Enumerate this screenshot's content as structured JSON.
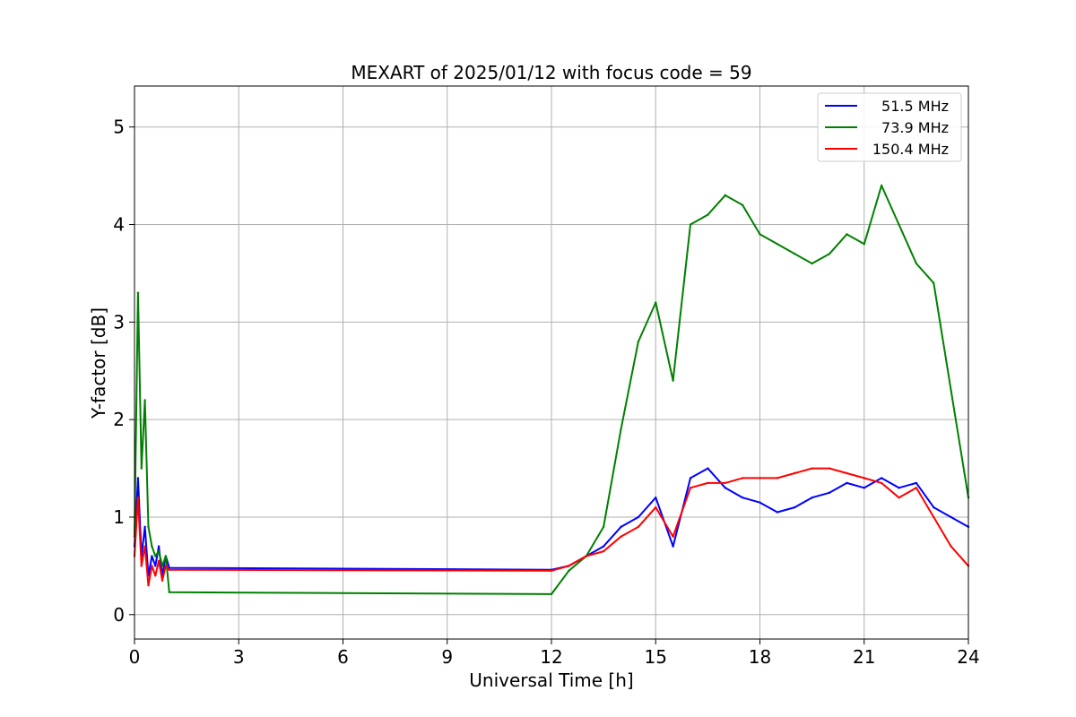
{
  "chart_data": {
    "type": "line",
    "title": "MEXART of 2025/01/12 with focus code = 59",
    "xlabel": "Universal Time [h]",
    "ylabel": "Y-factor [dB]",
    "xlim": [
      0,
      24
    ],
    "ylim": [
      -0.25,
      5.42
    ],
    "xticks": [
      0,
      3,
      6,
      9,
      12,
      15,
      18,
      21,
      24
    ],
    "xtick_labels": [
      "0",
      "3",
      "6",
      "9",
      "12",
      "15",
      "18",
      "21",
      "24"
    ],
    "yticks": [
      0,
      1,
      2,
      3,
      4,
      5
    ],
    "ytick_labels": [
      "0",
      "1",
      "2",
      "3",
      "4",
      "5"
    ],
    "grid": true,
    "legend_position": "top-right",
    "series": [
      {
        "name": " 51.5 MHz",
        "color": "#0000ff",
        "x": [
          0,
          0.1,
          0.2,
          0.3,
          0.4,
          0.5,
          0.6,
          0.7,
          0.8,
          0.9,
          1.0,
          12.0,
          12.5,
          13.0,
          13.5,
          14.0,
          14.5,
          15.0,
          15.5,
          16.0,
          16.5,
          17.0,
          17.5,
          18.0,
          18.5,
          19.0,
          19.5,
          20.0,
          20.5,
          21.0,
          21.5,
          22.0,
          22.5,
          23.0,
          23.5,
          24.0
        ],
        "values": [
          0.7,
          1.4,
          0.6,
          0.9,
          0.4,
          0.6,
          0.5,
          0.7,
          0.4,
          0.6,
          0.48,
          0.46,
          0.5,
          0.6,
          0.7,
          0.9,
          1.0,
          1.2,
          0.7,
          1.4,
          1.5,
          1.3,
          1.2,
          1.15,
          1.05,
          1.1,
          1.2,
          1.25,
          1.35,
          1.3,
          1.4,
          1.3,
          1.35,
          1.1,
          1.0,
          0.9
        ]
      },
      {
        "name": "73.9 MHz",
        "color": "#008000",
        "x": [
          0,
          0.1,
          0.2,
          0.3,
          0.4,
          0.5,
          0.6,
          0.7,
          0.8,
          0.9,
          1.0,
          12.0,
          12.5,
          13.0,
          13.5,
          14.0,
          14.5,
          15.0,
          15.5,
          16.0,
          16.5,
          17.0,
          17.5,
          18.0,
          18.5,
          19.0,
          19.5,
          20.0,
          20.5,
          21.0,
          21.5,
          22.0,
          22.5,
          23.0,
          23.5,
          24.0
        ],
        "values": [
          0.8,
          3.3,
          1.5,
          2.2,
          0.9,
          0.7,
          0.6,
          0.65,
          0.5,
          0.6,
          0.23,
          0.21,
          0.45,
          0.6,
          0.9,
          1.9,
          2.8,
          3.2,
          2.4,
          4.0,
          4.1,
          4.3,
          4.2,
          3.9,
          3.8,
          3.7,
          3.6,
          3.7,
          3.9,
          3.8,
          4.4,
          4.0,
          3.6,
          3.4,
          2.3,
          1.2
        ]
      },
      {
        "name": "150.4 MHz",
        "color": "#ff0000",
        "x": [
          0,
          0.1,
          0.2,
          0.3,
          0.4,
          0.5,
          0.6,
          0.7,
          0.8,
          0.9,
          1.0,
          12.0,
          12.5,
          13.0,
          13.5,
          14.0,
          14.5,
          15.0,
          15.5,
          16.0,
          16.5,
          17.0,
          17.5,
          18.0,
          18.5,
          19.0,
          19.5,
          20.0,
          20.5,
          21.0,
          21.5,
          22.0,
          22.5,
          23.0,
          23.5,
          24.0
        ],
        "values": [
          0.6,
          1.2,
          0.5,
          0.7,
          0.3,
          0.5,
          0.4,
          0.55,
          0.35,
          0.5,
          0.46,
          0.45,
          0.5,
          0.6,
          0.65,
          0.8,
          0.9,
          1.1,
          0.8,
          1.3,
          1.35,
          1.35,
          1.4,
          1.4,
          1.4,
          1.45,
          1.5,
          1.5,
          1.45,
          1.4,
          1.35,
          1.2,
          1.3,
          1.0,
          0.7,
          0.5
        ]
      }
    ]
  }
}
